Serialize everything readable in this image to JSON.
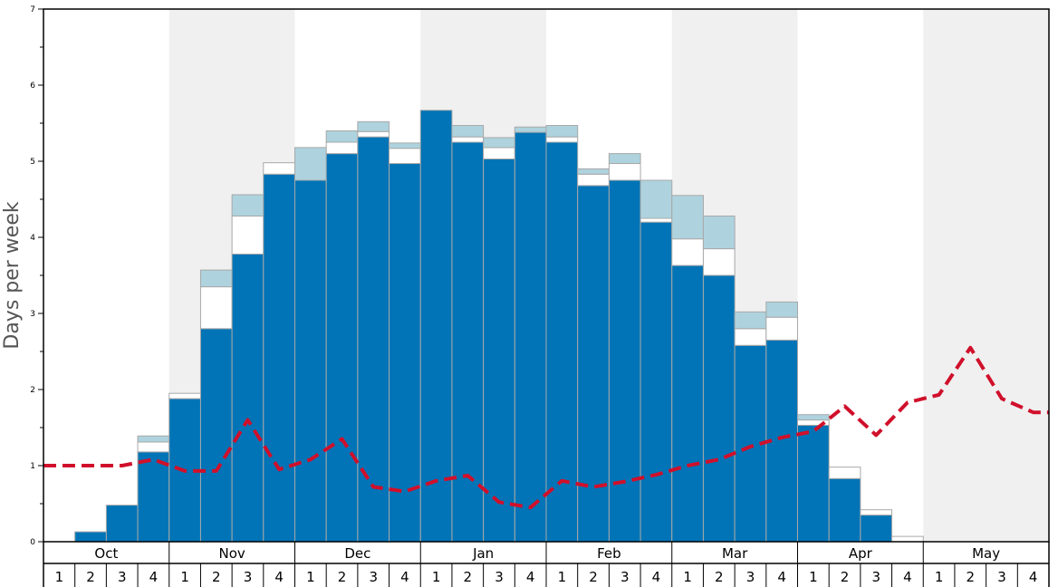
{
  "chart_data": {
    "type": "bar",
    "ylabel": "Days per week",
    "ylim": [
      0,
      7
    ],
    "yticks": [
      0,
      1,
      2,
      3,
      4,
      5,
      6,
      7
    ],
    "months": [
      "Oct",
      "Nov",
      "Dec",
      "Jan",
      "Feb",
      "Mar",
      "Apr",
      "May"
    ],
    "weeks": [
      "1",
      "2",
      "3",
      "4"
    ],
    "shaded_months": [
      "Nov",
      "Jan",
      "Mar",
      "May"
    ],
    "colors": {
      "main": "#0074b7",
      "top": "#aed3de",
      "middle": "#ffffff",
      "line": "#d0102b",
      "shade": "#f0f0f0"
    },
    "series": [
      {
        "values": [
          0,
          0.13,
          0.48,
          1.18,
          1.88,
          2.8,
          3.78,
          4.83,
          4.75,
          5.1,
          5.32,
          4.97,
          5.67,
          5.25,
          5.03,
          5.38,
          5.25,
          4.68,
          4.75,
          4.2,
          3.63,
          3.5,
          2.58,
          2.65,
          1.53,
          0.83,
          0.35,
          0,
          0,
          0,
          0,
          0
        ]
      },
      {
        "values": [
          0,
          0,
          0,
          0.13,
          0.07,
          0.55,
          0.5,
          0.15,
          0,
          0.15,
          0.07,
          0.2,
          0,
          0.07,
          0.15,
          0,
          0.07,
          0.15,
          0.22,
          0.05,
          0.35,
          0.35,
          0.22,
          0.3,
          0.07,
          0.15,
          0.07,
          0.07,
          0,
          0,
          0,
          0
        ]
      },
      {
        "values": [
          0,
          0,
          0,
          0.08,
          0,
          0.22,
          0.28,
          0,
          0.43,
          0.15,
          0.13,
          0.07,
          0,
          0.15,
          0.13,
          0.07,
          0.15,
          0.07,
          0.13,
          0.5,
          0.57,
          0.43,
          0.22,
          0.2,
          0.07,
          0,
          0,
          0,
          0,
          0,
          0,
          0
        ]
      },
      {
        "values": [
          1.0,
          1.0,
          1.0,
          1.08,
          0.93,
          0.93,
          1.6,
          0.95,
          1.08,
          1.35,
          0.72,
          0.66,
          0.8,
          0.87,
          0.52,
          0.45,
          0.8,
          0.72,
          0.79,
          0.88,
          1.0,
          1.08,
          1.25,
          1.37,
          1.45,
          1.78,
          1.4,
          1.83,
          1.93,
          2.55,
          1.88,
          1.7
        ]
      }
    ]
  }
}
